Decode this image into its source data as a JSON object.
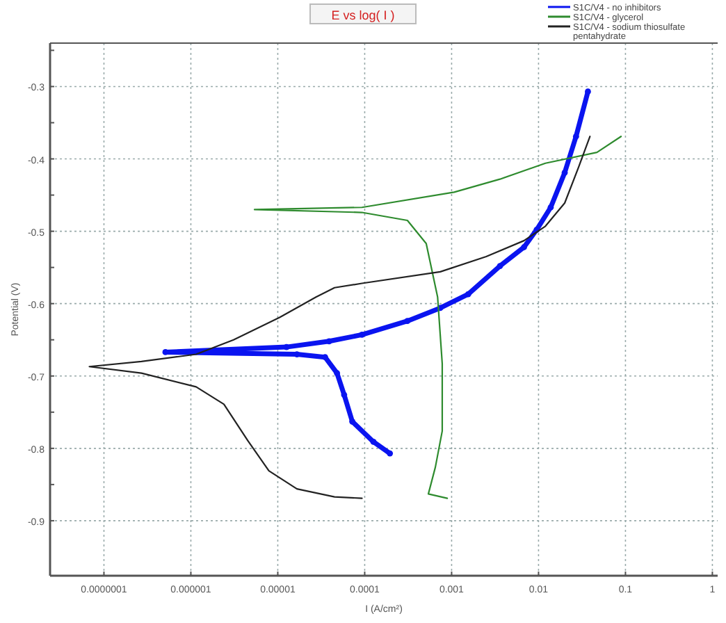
{
  "chart_data": {
    "type": "line",
    "title": "E vs log( I )",
    "xlabel": "I (A/cm²)",
    "ylabel": "Potential (V)",
    "log": "x",
    "grid": true,
    "legend": "top right",
    "line_style": "solid",
    "xlim": [
      2.4e-08,
      1.15
    ],
    "ylim": [
      -0.976,
      -0.24
    ],
    "xticks": [
      {
        "value": 1e-07,
        "label": "0.0000001"
      },
      {
        "value": 1e-06,
        "label": "0.000001"
      },
      {
        "value": 1e-05,
        "label": "0.00001"
      },
      {
        "value": 0.0001,
        "label": "0.0001"
      },
      {
        "value": 0.001,
        "label": "0.001"
      },
      0.01,
      0.1,
      1
    ],
    "yticks": [
      -0.9,
      {
        "value": -0.85,
        "label": null
      },
      -0.8,
      {
        "value": -0.75,
        "label": null
      },
      -0.7,
      {
        "value": -0.65,
        "label": null
      },
      -0.6,
      {
        "value": -0.55,
        "label": null
      },
      -0.5,
      {
        "value": -0.45,
        "label": null
      },
      -0.4,
      {
        "value": -0.35,
        "label": null
      },
      -0.3,
      {
        "value": -0.25,
        "label": null
      }
    ],
    "series": [
      {
        "name": "S1C/V4 - no inhibitors",
        "color": "#0a14f0",
        "marker": "circle",
        "x": [
          0.000195,
          0.000126,
          7.2e-05,
          5.8e-05,
          4.8e-05,
          3.5e-05,
          1.66e-05,
          5.1e-07,
          1.26e-05,
          3.9e-05,
          9.3e-05,
          0.00031,
          0.00074,
          0.00155,
          0.0036,
          0.0068,
          0.0095,
          0.0138,
          0.02,
          0.027,
          0.037
        ],
        "values": [
          -0.807,
          -0.791,
          -0.763,
          -0.726,
          -0.696,
          -0.674,
          -0.67,
          -0.667,
          -0.66,
          -0.652,
          -0.643,
          -0.624,
          -0.606,
          -0.587,
          -0.548,
          -0.522,
          -0.498,
          -0.467,
          -0.419,
          -0.369,
          -0.307
        ]
      },
      {
        "name": "S1C/V4 - glycerol",
        "color": "#2e8b2e",
        "marker": "none",
        "x": [
          0.00089,
          0.00054,
          0.00065,
          0.00078,
          0.00078,
          0.00069,
          0.00051,
          0.00031,
          9.3e-05,
          5.4e-06,
          9.3e-05,
          0.00107,
          0.0036,
          0.012,
          0.047,
          0.089
        ],
        "values": [
          -0.869,
          -0.863,
          -0.826,
          -0.776,
          -0.683,
          -0.591,
          -0.517,
          -0.485,
          -0.474,
          -0.47,
          -0.467,
          -0.446,
          -0.428,
          -0.406,
          -0.391,
          -0.369
        ]
      },
      {
        "name": "S1C/V4 - sodium thiosulfate pentahydrate",
        "color": "#222222",
        "marker": "none",
        "x": [
          9.3e-05,
          4.5e-05,
          1.66e-05,
          7.9e-06,
          4.5e-06,
          2.4e-06,
          1.15e-06,
          2.7e-07,
          6.8e-08,
          2.7e-07,
          1.15e-06,
          3.1e-06,
          1.05e-05,
          2.75e-05,
          4.5e-05,
          9.3e-05,
          0.00074,
          0.0025,
          0.0068,
          0.012,
          0.02,
          0.029,
          0.039
        ],
        "values": [
          -0.869,
          -0.867,
          -0.856,
          -0.831,
          -0.789,
          -0.739,
          -0.715,
          -0.696,
          -0.687,
          -0.68,
          -0.67,
          -0.65,
          -0.619,
          -0.591,
          -0.578,
          -0.572,
          -0.556,
          -0.535,
          -0.513,
          -0.493,
          -0.461,
          -0.411,
          -0.369
        ]
      }
    ]
  }
}
